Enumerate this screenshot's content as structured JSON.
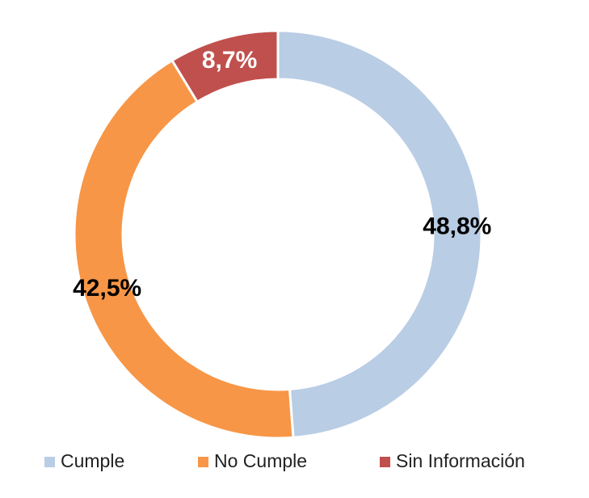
{
  "chart_data": {
    "type": "donut",
    "categories": [
      "Cumple",
      "No Cumple",
      "Sin Información"
    ],
    "values": [
      48.8,
      42.5,
      8.7
    ],
    "value_labels": [
      "48,8%",
      "42,5%",
      "8,7%"
    ],
    "colors": [
      "#b9cde5",
      "#f79646",
      "#c0504d"
    ],
    "label_colors": [
      "#000000",
      "#000000",
      "#ffffff"
    ],
    "legend": "bottom"
  }
}
